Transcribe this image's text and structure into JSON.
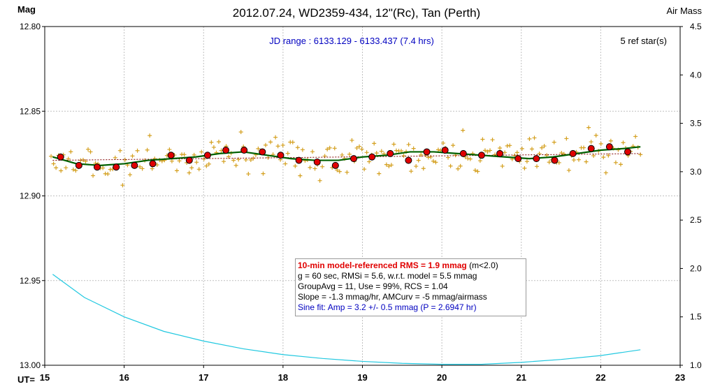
{
  "title": "2012.07.24, WD2359-434, 12\"(Rc), Tan (Perth)",
  "left_axis_label": "Mag",
  "right_axis_label": "Air Mass",
  "bottom_axis_label": "UT=",
  "jd_range": "JD range : 6133.129 - 6133.437 (7.4 hrs)",
  "ref_stars": "5 ref star(s)",
  "info": {
    "rms_label": "10-min model-referenced RMS = 1.9 mmag",
    "rms_note": " (m<2.0)",
    "line2": "g = 60 sec, RMSi = 5.6, w.r.t. model = 5.5 mmag",
    "line3": "GroupAvg  = 11, Use = 99%, RCS = 1.04",
    "line4": "Slope = -1.3 mmag/hr, AMCurv  = -5 mmag/airmass",
    "line5": "Sine fit: Amp = 3.2 +/- 0.5 mmag (P = 2.6947  hr)"
  },
  "colors": {
    "raw_points": "#d4a020",
    "averages": "#e00000",
    "model_fit": "#006000",
    "trend": "#800000",
    "airmass": "#20c8e0",
    "grid": "#c0c0c0",
    "jd_text": "#0000c0"
  },
  "chart_data": {
    "type": "scatter",
    "x_label": "UT=",
    "xlim": [
      15,
      23
    ],
    "x_ticks": [
      15,
      16,
      17,
      18,
      19,
      20,
      21,
      22,
      23
    ],
    "y_left_label": "Mag",
    "ylim_left": [
      13.0,
      12.8
    ],
    "y_left_ticks": [
      "12.80",
      "12.85",
      "12.90",
      "12.95",
      "13.00"
    ],
    "y_right_label": "Air Mass",
    "ylim_right": [
      1.0,
      4.5
    ],
    "y_right_ticks": [
      "1.0",
      "1.5",
      "2.0",
      "2.5",
      "3.0",
      "3.5",
      "4.0",
      "4.5"
    ],
    "grid": true,
    "series": [
      {
        "name": "10-min averages",
        "kind": "points",
        "x": [
          15.2,
          15.43,
          15.66,
          15.9,
          16.13,
          16.36,
          16.59,
          16.82,
          17.05,
          17.28,
          17.51,
          17.74,
          17.97,
          18.2,
          18.43,
          18.66,
          18.89,
          19.12,
          19.35,
          19.58,
          19.81,
          20.04,
          20.27,
          20.5,
          20.73,
          20.96,
          21.19,
          21.42,
          21.65,
          21.88,
          22.11,
          22.34
        ],
        "y": [
          12.877,
          12.882,
          12.883,
          12.883,
          12.882,
          12.881,
          12.876,
          12.879,
          12.876,
          12.873,
          12.873,
          12.874,
          12.876,
          12.879,
          12.88,
          12.882,
          12.878,
          12.877,
          12.875,
          12.879,
          12.874,
          12.873,
          12.875,
          12.876,
          12.875,
          12.878,
          12.878,
          12.879,
          12.875,
          12.872,
          12.871,
          12.874
        ]
      },
      {
        "name": "model fit",
        "kind": "line",
        "x": [
          15.1,
          15.4,
          15.7,
          16.0,
          16.3,
          16.6,
          16.9,
          17.2,
          17.5,
          17.8,
          18.1,
          18.4,
          18.7,
          19.0,
          19.3,
          19.6,
          19.9,
          20.2,
          20.5,
          20.8,
          21.1,
          21.4,
          21.7,
          22.0,
          22.3,
          22.5
        ],
        "y": [
          12.877,
          12.881,
          12.882,
          12.881,
          12.879,
          12.878,
          12.877,
          12.875,
          12.874,
          12.876,
          12.878,
          12.879,
          12.879,
          12.877,
          12.876,
          12.874,
          12.874,
          12.875,
          12.876,
          12.877,
          12.878,
          12.877,
          12.875,
          12.873,
          12.872,
          12.871
        ]
      },
      {
        "name": "trend",
        "kind": "dashed",
        "x": [
          15.1,
          22.5
        ],
        "y": [
          12.879,
          12.875
        ]
      },
      {
        "name": "air mass",
        "kind": "line",
        "axis": "right",
        "x": [
          15.1,
          15.5,
          16.0,
          16.5,
          17.0,
          17.5,
          18.0,
          18.5,
          19.0,
          19.5,
          20.0,
          20.5,
          21.0,
          21.5,
          22.0,
          22.5
        ],
        "y": [
          1.94,
          1.7,
          1.5,
          1.35,
          1.25,
          1.17,
          1.11,
          1.07,
          1.04,
          1.02,
          1.01,
          1.01,
          1.03,
          1.06,
          1.1,
          1.16
        ]
      }
    ],
    "raw_points": {
      "name": "raw measurements",
      "x_start": 15.08,
      "x_end": 22.5,
      "count": 240,
      "scatter_mmag": 5.6
    }
  }
}
